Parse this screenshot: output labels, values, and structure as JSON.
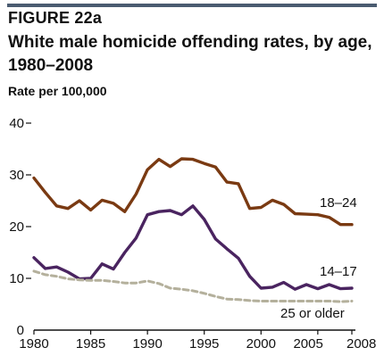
{
  "header": {
    "figure_label": "FIGURE 22a",
    "title": "White male homicide offending rates, by age, 1980–2008",
    "rule_color": "#4a5b70"
  },
  "chart_data": {
    "type": "line",
    "title": "White male homicide offending rates, by age, 1980–2008",
    "xlabel": "",
    "ylabel": "Rate per 100,000",
    "xlim": [
      1980,
      2008
    ],
    "ylim": [
      0,
      40
    ],
    "x_ticks": [
      1980,
      1985,
      1990,
      1995,
      2000,
      2005,
      2008
    ],
    "y_ticks": [
      0,
      10,
      20,
      30,
      40
    ],
    "grid": false,
    "legend": "none",
    "series": [
      {
        "name": "18–24",
        "color": "#7a3a12",
        "style": "solid",
        "x": [
          1980,
          1981,
          1982,
          1983,
          1984,
          1985,
          1986,
          1987,
          1988,
          1989,
          1990,
          1991,
          1992,
          1993,
          1994,
          1995,
          1996,
          1997,
          1998,
          1999,
          2000,
          2001,
          2002,
          2003,
          2004,
          2005,
          2006,
          2007,
          2008
        ],
        "values": [
          29.4,
          26.6,
          24.0,
          23.5,
          25.0,
          23.2,
          25.1,
          24.5,
          22.9,
          26.3,
          31.0,
          33.0,
          31.6,
          33.1,
          33.0,
          32.2,
          31.5,
          28.6,
          28.3,
          23.5,
          23.7,
          25.1,
          24.3,
          22.5,
          22.4,
          22.3,
          21.8,
          20.4,
          20.4
        ]
      },
      {
        "name": "14–17",
        "color": "#4a2460",
        "style": "solid",
        "x": [
          1980,
          1981,
          1982,
          1983,
          1984,
          1985,
          1986,
          1987,
          1988,
          1989,
          1990,
          1991,
          1992,
          1993,
          1994,
          1995,
          1996,
          1997,
          1998,
          1999,
          2000,
          2001,
          2002,
          2003,
          2004,
          2005,
          2006,
          2007,
          2008
        ],
        "values": [
          14.0,
          11.9,
          12.2,
          11.2,
          9.9,
          10.0,
          12.8,
          11.8,
          15.0,
          17.8,
          22.3,
          22.9,
          23.1,
          22.3,
          24.0,
          21.4,
          17.6,
          15.7,
          13.9,
          10.4,
          8.1,
          8.3,
          9.2,
          7.9,
          8.8,
          8.0,
          8.8,
          8.0,
          8.1
        ]
      },
      {
        "name": "25 or older",
        "color": "#b4b09c",
        "style": "dashed",
        "x": [
          1980,
          1981,
          1982,
          1983,
          1984,
          1985,
          1986,
          1987,
          1988,
          1989,
          1990,
          1991,
          1992,
          1993,
          1994,
          1995,
          1996,
          1997,
          1998,
          1999,
          2000,
          2001,
          2002,
          2003,
          2004,
          2005,
          2006,
          2007,
          2008
        ],
        "values": [
          11.4,
          10.7,
          10.4,
          9.9,
          9.7,
          9.6,
          9.6,
          9.4,
          9.1,
          9.1,
          9.5,
          9.0,
          8.1,
          7.9,
          7.6,
          7.1,
          6.5,
          6.0,
          5.9,
          5.7,
          5.6,
          5.6,
          5.6,
          5.6,
          5.6,
          5.6,
          5.6,
          5.5,
          5.6
        ]
      }
    ]
  }
}
